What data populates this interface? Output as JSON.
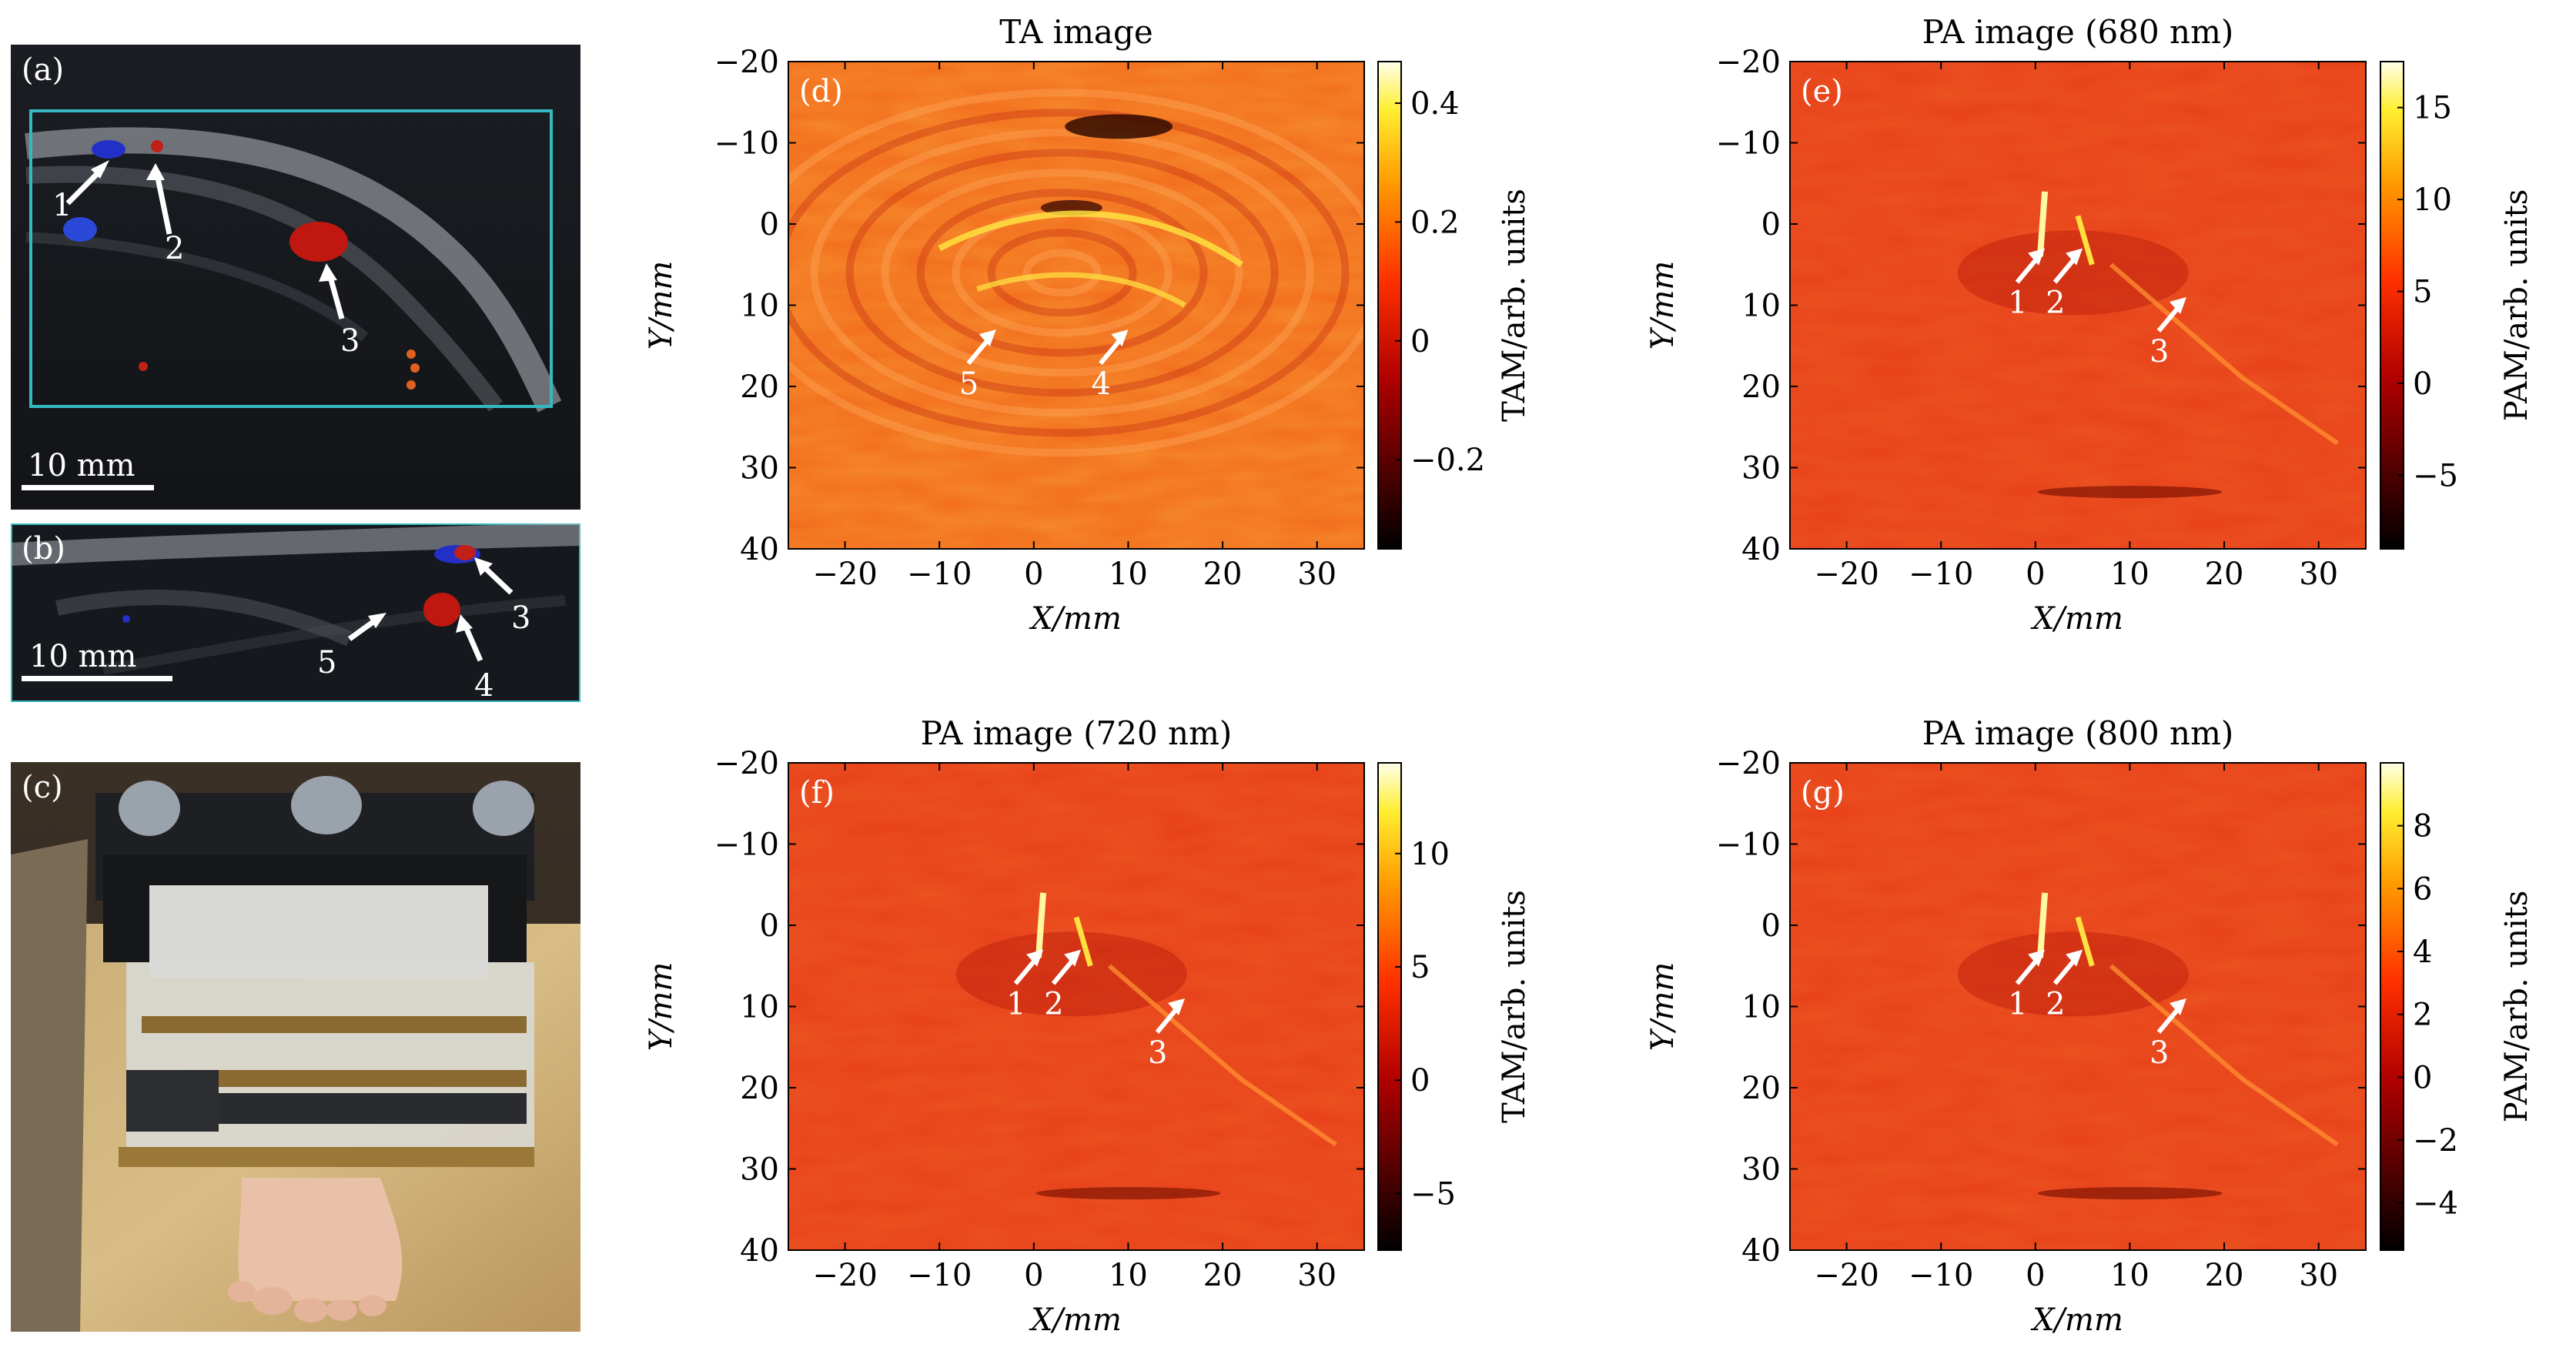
{
  "figure": {
    "photo_panels": [
      {
        "id": "a",
        "label": "(a)",
        "scale_label": "10 mm",
        "annotations": [
          "1",
          "2",
          "3"
        ]
      },
      {
        "id": "b",
        "label": "(b)",
        "scale_label": "10 mm",
        "annotations": [
          "3",
          "4",
          "5"
        ]
      },
      {
        "id": "c",
        "label": "(c)"
      }
    ]
  },
  "chart_data": [
    {
      "type": "heatmap",
      "panel": "(d)",
      "title": "TA image",
      "xlabel": "X/mm",
      "ylabel": "Y/mm",
      "xlim": [
        -26,
        35
      ],
      "ylim": [
        40,
        -20
      ],
      "xticks": [
        -20,
        -10,
        0,
        10,
        20,
        30
      ],
      "yticks": [
        -20,
        -10,
        0,
        10,
        20,
        30,
        40
      ],
      "colorbar": {
        "label": "TAM/arb. units",
        "range": [
          -0.35,
          0.47
        ],
        "ticks": [
          -0.2,
          0,
          0.2,
          0.4
        ]
      },
      "annotations": [
        {
          "text": "5",
          "x": -4,
          "y": 13
        },
        {
          "text": "4",
          "x": 10,
          "y": 13
        }
      ]
    },
    {
      "type": "heatmap",
      "panel": "(e)",
      "title": "PA image (680 nm)",
      "xlabel": "X/mm",
      "ylabel": "Y/mm",
      "xlim": [
        -26,
        35
      ],
      "ylim": [
        40,
        -20
      ],
      "xticks": [
        -20,
        -10,
        0,
        10,
        20,
        30
      ],
      "yticks": [
        -20,
        -10,
        0,
        10,
        20,
        30,
        40
      ],
      "colorbar": {
        "label": "PAM/arb. units",
        "range": [
          -9,
          17.5
        ],
        "ticks": [
          -5,
          0,
          5,
          10,
          15
        ]
      },
      "annotations": [
        {
          "text": "1",
          "x": 1,
          "y": 3
        },
        {
          "text": "2",
          "x": 5,
          "y": 3
        },
        {
          "text": "3",
          "x": 16,
          "y": 9
        }
      ]
    },
    {
      "type": "heatmap",
      "panel": "(f)",
      "title": "PA image (720 nm)",
      "xlabel": "X/mm",
      "ylabel": "Y/mm",
      "xlim": [
        -26,
        35
      ],
      "ylim": [
        40,
        -20
      ],
      "xticks": [
        -20,
        -10,
        0,
        10,
        20,
        30
      ],
      "yticks": [
        -20,
        -10,
        0,
        10,
        20,
        30,
        40
      ],
      "colorbar": {
        "label": "TAM/arb. units",
        "range": [
          -7.5,
          14
        ],
        "ticks": [
          -5,
          0,
          5,
          10
        ]
      },
      "annotations": [
        {
          "text": "1",
          "x": 1,
          "y": 3
        },
        {
          "text": "2",
          "x": 5,
          "y": 3
        },
        {
          "text": "3",
          "x": 16,
          "y": 9
        }
      ]
    },
    {
      "type": "heatmap",
      "panel": "(g)",
      "title": "PA image (800 nm)",
      "xlabel": "X/mm",
      "ylabel": "Y/mm",
      "xlim": [
        -26,
        35
      ],
      "ylim": [
        40,
        -20
      ],
      "xticks": [
        -20,
        -10,
        0,
        10,
        20,
        30
      ],
      "yticks": [
        -20,
        -10,
        0,
        10,
        20,
        30,
        40
      ],
      "colorbar": {
        "label": "PAM/arb. units",
        "range": [
          -5.5,
          10
        ],
        "ticks": [
          -4,
          -2,
          0,
          2,
          4,
          6,
          8
        ]
      },
      "annotations": [
        {
          "text": "1",
          "x": 1,
          "y": 3
        },
        {
          "text": "2",
          "x": 5,
          "y": 3
        },
        {
          "text": "3",
          "x": 16,
          "y": 9
        }
      ]
    }
  ]
}
